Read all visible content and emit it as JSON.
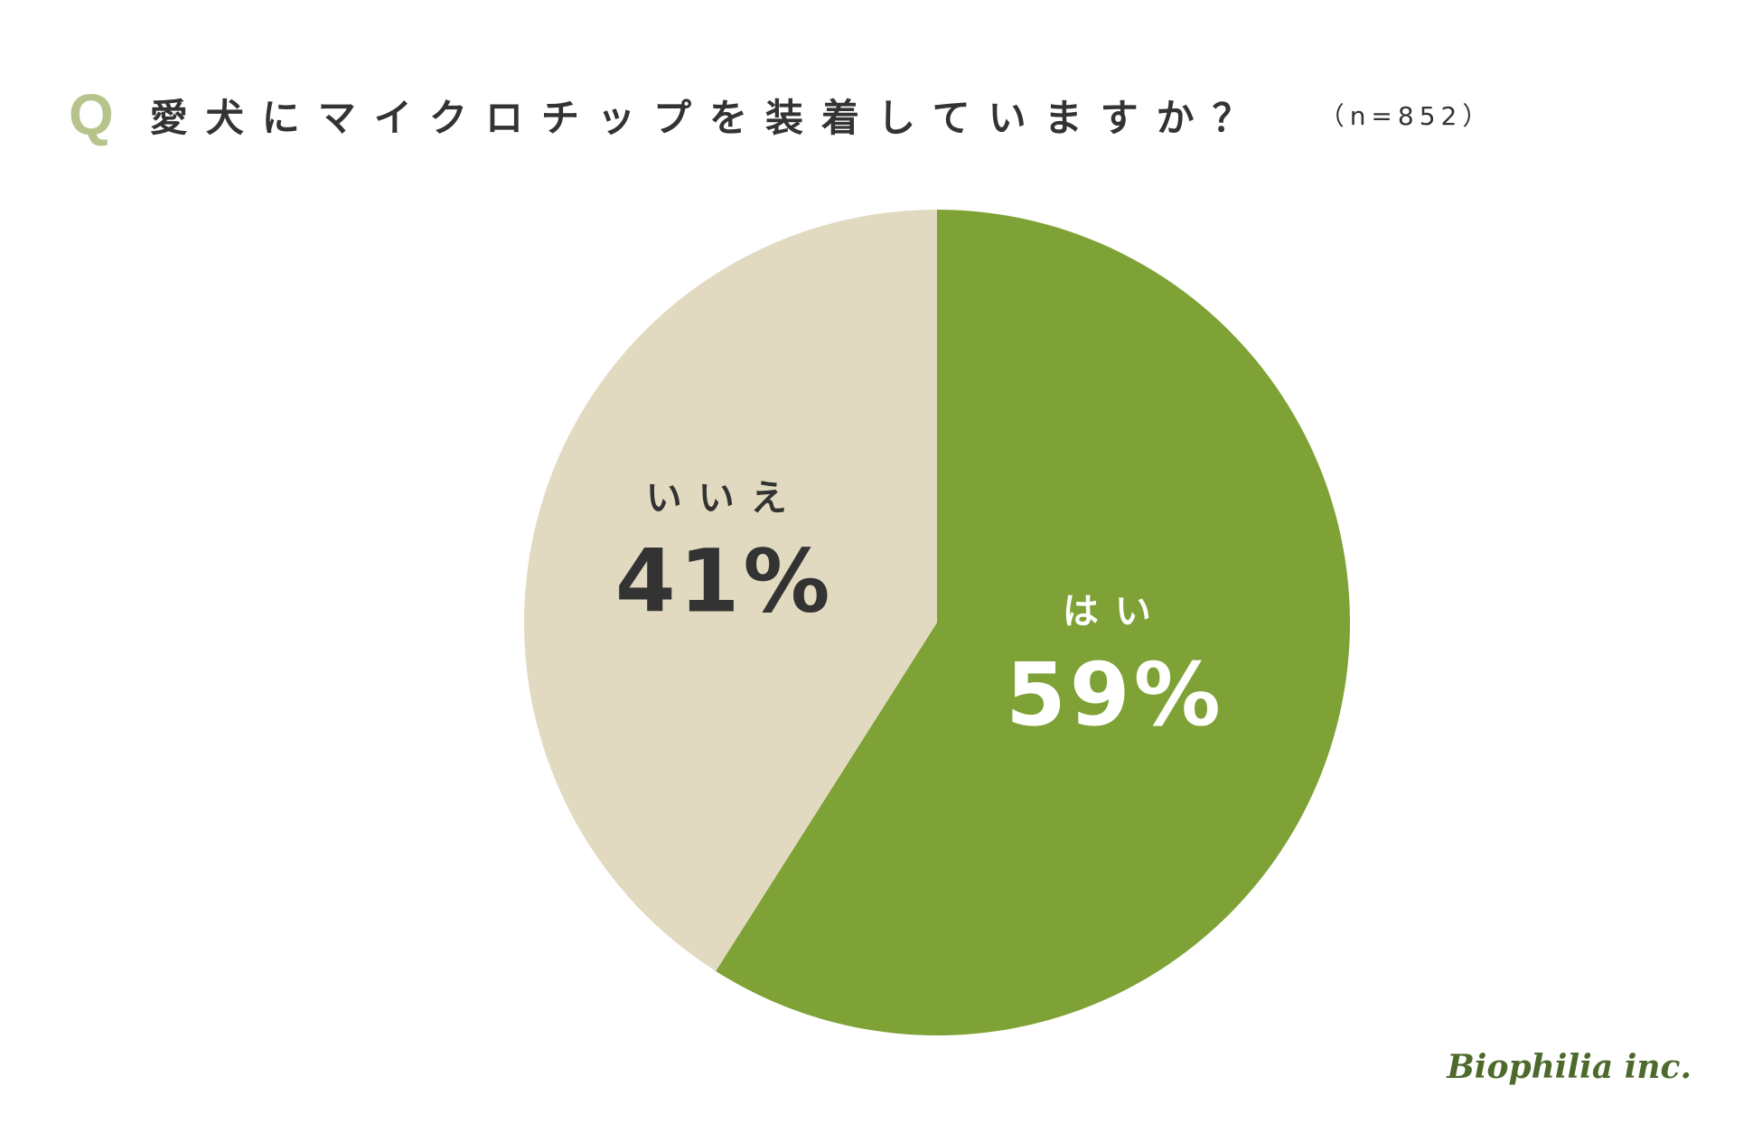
{
  "header": {
    "q_mark": "Q",
    "question": "愛犬にマイクロチップを装着していますか？",
    "sample_size": "（n=852）"
  },
  "colors": {
    "yes": "#7ea236",
    "no": "#e2dac0",
    "q_mark": "#b6c48c",
    "dark_text": "#333333",
    "light_text": "#ffffff",
    "logo": "#4d6a2c"
  },
  "chart_data": {
    "type": "pie",
    "title": "愛犬にマイクロチップを装着していますか？",
    "categories": [
      "はい",
      "いいえ"
    ],
    "values": [
      59,
      41
    ],
    "value_labels": [
      "59%",
      "41%"
    ],
    "start": "12 o'clock",
    "direction": "clockwise"
  },
  "logo": {
    "text": "Biophilia inc."
  }
}
